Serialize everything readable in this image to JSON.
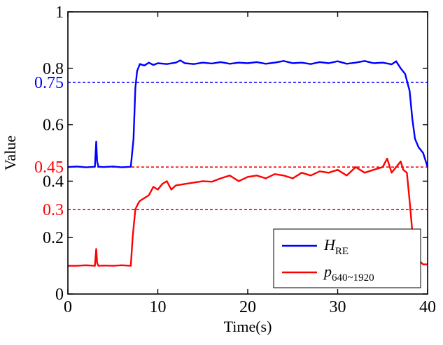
{
  "chart_data": {
    "type": "line",
    "xlabel": "Time(s)",
    "ylabel": "Value",
    "xlim": [
      0,
      40
    ],
    "ylim": [
      0,
      1
    ],
    "grid": false,
    "x_ticks": [
      0,
      10,
      20,
      30,
      40
    ],
    "x_tick_labels": [
      "0",
      "10",
      "20",
      "30",
      "40"
    ],
    "y_ticks": [
      0,
      0.2,
      0.4,
      0.6,
      0.8,
      1
    ],
    "y_tick_labels": [
      "0",
      "0.2",
      "0.4",
      "0.6",
      "0.8",
      "1"
    ],
    "reference_lines": [
      {
        "value": 0.75,
        "label": "0.75",
        "color": "#0000ff",
        "style": "dashed"
      },
      {
        "value": 0.45,
        "label": "0.45",
        "color": "#ff0000",
        "style": "dashed"
      },
      {
        "value": 0.3,
        "label": "0.3",
        "color": "#ff0000",
        "style": "dashed"
      }
    ],
    "legend": {
      "placement": "bottom-right",
      "entries": [
        {
          "main": "H",
          "sub": "RE",
          "series": 0
        },
        {
          "main": "p",
          "sub": "640~1920",
          "series": 1
        }
      ]
    },
    "series": [
      {
        "name": "H_RE",
        "color": "#0000ff",
        "x": [
          0,
          1,
          2,
          3,
          3.05,
          3.15,
          3.25,
          3.4,
          4,
          5,
          6,
          7,
          7.3,
          7.5,
          7.7,
          8,
          8.5,
          9,
          9.5,
          10,
          11,
          12,
          12.5,
          13,
          14,
          15,
          16,
          17,
          18,
          19,
          20,
          21,
          22,
          23,
          24,
          25,
          26,
          27,
          28,
          29,
          30,
          31,
          32,
          33,
          33.5,
          34,
          35,
          36,
          36.5,
          37,
          37.5,
          38,
          38.3,
          38.6,
          39,
          39.5,
          40
        ],
        "y": [
          0.45,
          0.452,
          0.449,
          0.451,
          0.48,
          0.54,
          0.47,
          0.451,
          0.45,
          0.452,
          0.449,
          0.451,
          0.55,
          0.73,
          0.79,
          0.815,
          0.81,
          0.82,
          0.812,
          0.818,
          0.815,
          0.82,
          0.828,
          0.818,
          0.815,
          0.82,
          0.817,
          0.822,
          0.816,
          0.82,
          0.818,
          0.822,
          0.816,
          0.82,
          0.826,
          0.818,
          0.82,
          0.815,
          0.822,
          0.818,
          0.825,
          0.816,
          0.82,
          0.826,
          0.822,
          0.818,
          0.82,
          0.814,
          0.825,
          0.8,
          0.78,
          0.72,
          0.62,
          0.55,
          0.52,
          0.5,
          0.45
        ]
      },
      {
        "name": "p_640~1920",
        "color": "#ff0000",
        "x": [
          0,
          1,
          2,
          3,
          3.05,
          3.15,
          3.25,
          3.4,
          4,
          5,
          6,
          7,
          7.2,
          7.5,
          7.8,
          8,
          8.5,
          9,
          9.5,
          10,
          10.5,
          11,
          11.5,
          12,
          13,
          14,
          15,
          16,
          17,
          18,
          19,
          20,
          21,
          22,
          23,
          24,
          25,
          26,
          27,
          28,
          29,
          30,
          31,
          32,
          33,
          34,
          35,
          35.5,
          36,
          36.5,
          37,
          37.3,
          37.7,
          38,
          38.3,
          38.7,
          39,
          39.5,
          40
        ],
        "y": [
          0.1,
          0.1,
          0.102,
          0.1,
          0.12,
          0.16,
          0.11,
          0.1,
          0.101,
          0.1,
          0.102,
          0.1,
          0.2,
          0.3,
          0.32,
          0.33,
          0.34,
          0.35,
          0.38,
          0.37,
          0.39,
          0.4,
          0.37,
          0.385,
          0.39,
          0.395,
          0.4,
          0.398,
          0.41,
          0.42,
          0.4,
          0.415,
          0.42,
          0.41,
          0.425,
          0.42,
          0.41,
          0.43,
          0.42,
          0.435,
          0.43,
          0.44,
          0.42,
          0.45,
          0.43,
          0.44,
          0.45,
          0.48,
          0.43,
          0.45,
          0.47,
          0.44,
          0.43,
          0.33,
          0.22,
          0.15,
          0.12,
          0.105,
          0.105
        ]
      }
    ]
  }
}
